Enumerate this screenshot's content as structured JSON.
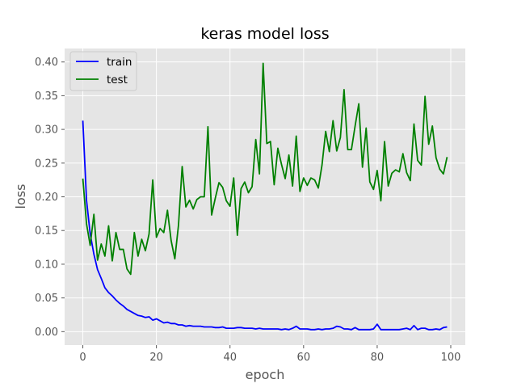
{
  "chart_data": {
    "type": "line",
    "title": "keras model loss",
    "xlabel": "epoch",
    "ylabel": "loss",
    "xlim": [
      -4.95,
      103.95
    ],
    "ylim": [
      -0.02,
      0.42
    ],
    "xticks": [
      0,
      20,
      40,
      60,
      80,
      100
    ],
    "xtick_labels": [
      "0",
      "20",
      "40",
      "60",
      "80",
      "100"
    ],
    "yticks": [
      0.0,
      0.05,
      0.1,
      0.15,
      0.2,
      0.25,
      0.3,
      0.35,
      0.4
    ],
    "ytick_labels": [
      "0.00",
      "0.05",
      "0.10",
      "0.15",
      "0.20",
      "0.25",
      "0.30",
      "0.35",
      "0.40"
    ],
    "grid": true,
    "legend_position": "upper-left",
    "background_color": "#e5e5e5",
    "series": [
      {
        "name": "train",
        "color": "#0000ff",
        "x_start": 0,
        "values": [
          0.313,
          0.195,
          0.145,
          0.115,
          0.092,
          0.079,
          0.065,
          0.058,
          0.053,
          0.047,
          0.042,
          0.038,
          0.033,
          0.03,
          0.027,
          0.024,
          0.023,
          0.021,
          0.022,
          0.017,
          0.019,
          0.016,
          0.013,
          0.014,
          0.012,
          0.012,
          0.01,
          0.01,
          0.008,
          0.009,
          0.008,
          0.008,
          0.008,
          0.007,
          0.007,
          0.007,
          0.006,
          0.006,
          0.007,
          0.005,
          0.005,
          0.005,
          0.006,
          0.006,
          0.005,
          0.005,
          0.005,
          0.004,
          0.005,
          0.004,
          0.004,
          0.004,
          0.004,
          0.004,
          0.003,
          0.004,
          0.003,
          0.005,
          0.008,
          0.004,
          0.004,
          0.004,
          0.003,
          0.003,
          0.004,
          0.003,
          0.004,
          0.004,
          0.005,
          0.008,
          0.007,
          0.004,
          0.004,
          0.003,
          0.006,
          0.003,
          0.003,
          0.003,
          0.003,
          0.004,
          0.011,
          0.003,
          0.003,
          0.003,
          0.003,
          0.003,
          0.003,
          0.004,
          0.005,
          0.003,
          0.009,
          0.003,
          0.005,
          0.005,
          0.003,
          0.003,
          0.004,
          0.003,
          0.006,
          0.007
        ]
      },
      {
        "name": "test",
        "color": "#008000",
        "x_start": 0,
        "values": [
          0.227,
          0.16,
          0.128,
          0.174,
          0.106,
          0.13,
          0.112,
          0.157,
          0.105,
          0.147,
          0.122,
          0.122,
          0.093,
          0.085,
          0.147,
          0.112,
          0.137,
          0.12,
          0.145,
          0.225,
          0.14,
          0.153,
          0.147,
          0.18,
          0.135,
          0.108,
          0.158,
          0.245,
          0.185,
          0.195,
          0.182,
          0.196,
          0.2,
          0.2,
          0.304,
          0.173,
          0.198,
          0.221,
          0.214,
          0.194,
          0.186,
          0.228,
          0.143,
          0.212,
          0.222,
          0.206,
          0.215,
          0.285,
          0.234,
          0.398,
          0.279,
          0.282,
          0.218,
          0.272,
          0.248,
          0.227,
          0.262,
          0.216,
          0.29,
          0.208,
          0.228,
          0.217,
          0.228,
          0.225,
          0.213,
          0.247,
          0.297,
          0.267,
          0.313,
          0.268,
          0.288,
          0.359,
          0.27,
          0.27,
          0.305,
          0.338,
          0.244,
          0.302,
          0.222,
          0.211,
          0.239,
          0.194,
          0.282,
          0.216,
          0.235,
          0.24,
          0.237,
          0.264,
          0.236,
          0.224,
          0.308,
          0.254,
          0.247,
          0.349,
          0.278,
          0.305,
          0.258,
          0.241,
          0.234,
          0.259
        ]
      }
    ]
  }
}
